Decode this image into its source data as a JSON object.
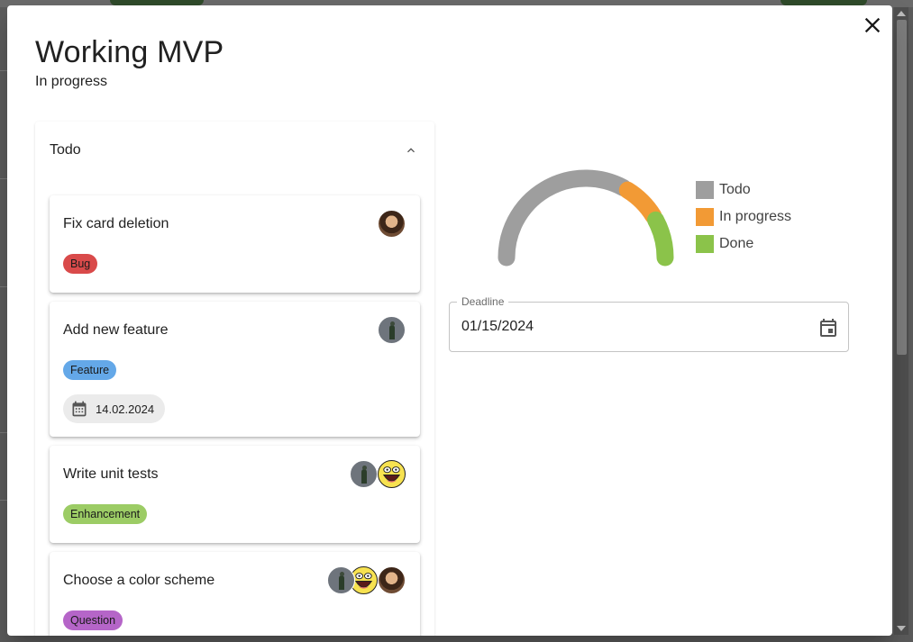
{
  "dialog": {
    "title": "Working MVP",
    "status": "In progress",
    "close_icon": "close-icon"
  },
  "column": {
    "title": "Todo",
    "toggle_icon": "chevron-up-icon",
    "cards": [
      {
        "title": "Fix card deletion",
        "tag": "Bug",
        "tag_color": "#d94a4a",
        "date": null,
        "avatars": [
          "man"
        ]
      },
      {
        "title": "Add new feature",
        "tag": "Feature",
        "tag_color": "#64a8e8",
        "date": "14.02.2024",
        "avatars": [
          "person"
        ]
      },
      {
        "title": "Write unit tests",
        "tag": "Enhancement",
        "tag_color": "#9ccc65",
        "date": null,
        "avatars": [
          "person",
          "smiley"
        ]
      },
      {
        "title": "Choose a color scheme",
        "tag": "Question",
        "tag_color": "#b565c8",
        "date": null,
        "avatars": [
          "person",
          "smiley",
          "man"
        ]
      }
    ]
  },
  "chart_data": {
    "type": "pie",
    "subtype": "semi-donut",
    "series": [
      {
        "name": "Todo",
        "value": 4,
        "color": "#9e9e9e"
      },
      {
        "name": "In progress",
        "value": 1,
        "color": "#f29a35"
      },
      {
        "name": "Done",
        "value": 1,
        "color": "#8bc34a"
      }
    ],
    "legend_position": "right"
  },
  "deadline": {
    "label": "Deadline",
    "value": "01/15/2024",
    "icon": "calendar-icon"
  },
  "colors": {
    "accent": "#1976d2",
    "todo": "#9e9e9e",
    "in_progress": "#f29a35",
    "done": "#8bc34a"
  }
}
